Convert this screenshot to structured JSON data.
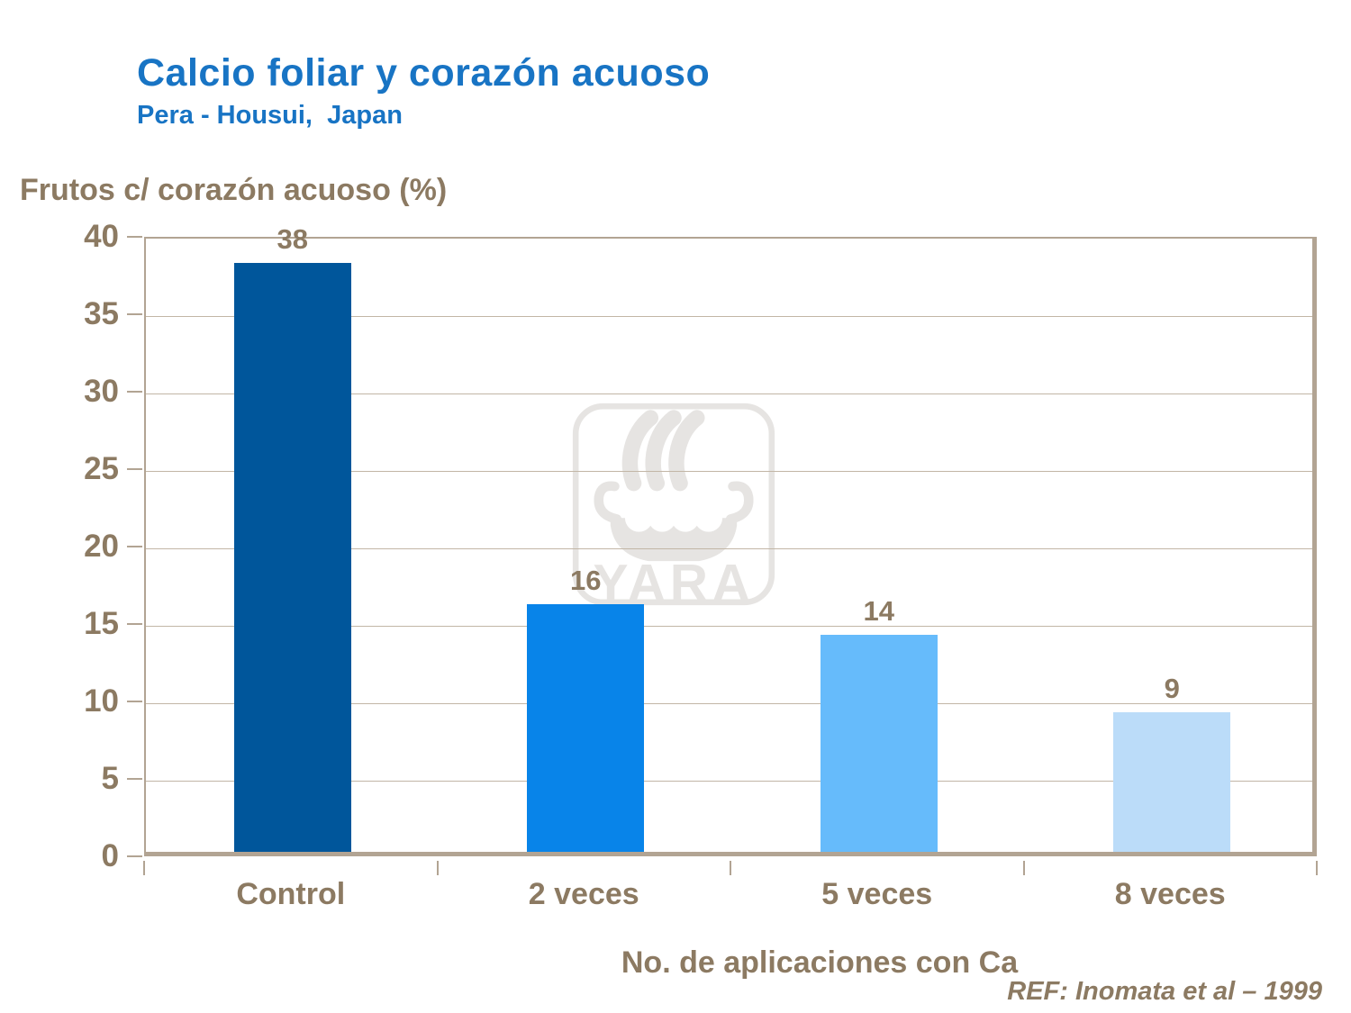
{
  "header": {
    "title": "Calcio foliar y corazón acuoso",
    "subtitle": "Pera - Housui,  Japan"
  },
  "chart_data": {
    "type": "bar",
    "title": "Calcio foliar y corazón acuoso",
    "subtitle": "Pera - Housui, Japan",
    "categories": [
      "Control",
      "2 veces",
      "5 veces",
      "8 veces"
    ],
    "values": [
      38,
      16,
      14,
      9
    ],
    "bar_colors": [
      "#00569B",
      "#0884E9",
      "#66BBFB",
      "#BBDCF9"
    ],
    "ylabel": "Frutos c/ corazón acuoso (%)",
    "xlabel": "No. de aplicaciones con Ca",
    "ylim": [
      0,
      40
    ],
    "yticks": [
      0,
      5,
      10,
      15,
      20,
      25,
      30,
      35,
      40
    ],
    "grid": true,
    "legend": "none",
    "value_labels_shown": true,
    "reference": "REF: Inomata et al – 1999"
  },
  "watermark": {
    "logo": "yara-viking-ship-logo",
    "text": "YARA",
    "color": "#E6E4E2"
  },
  "colors": {
    "title_blue": "#1874C4",
    "text_brown": "#8C7A62",
    "axis_tan": "#B2A493",
    "gridline_tan": "#C2B6A6"
  }
}
